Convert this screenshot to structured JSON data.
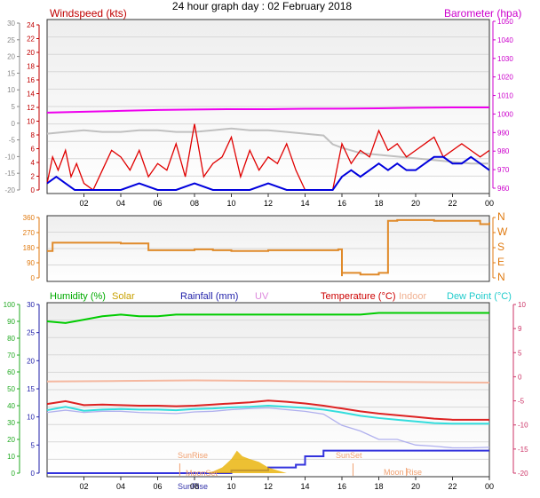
{
  "title": "24 hour graph day : 02 February 2018",
  "x_ticks": [
    "02",
    "04",
    "06",
    "08",
    "10",
    "12",
    "14",
    "16",
    "18",
    "20",
    "22",
    "00"
  ],
  "colors": {
    "wind": "#e00000",
    "gust_avg": "#0000dd",
    "baro": "#ee00ee",
    "baro_old": "#c0c0c0",
    "dir": "#e08a2a",
    "humidity": "#00cc00",
    "solar": "#e8b000",
    "rain": "#3333dd",
    "uv": "#dd88dd",
    "temp": "#dd2222",
    "indoor": "#f5b8a0",
    "dew": "#33dddd",
    "apparent": "#b0b0ee"
  },
  "chart_data": [
    {
      "type": "line",
      "panel": "wind-baro",
      "left_label": "Windspeed (kts)",
      "right_label": "Barometer (hpa)",
      "left_axis_outer": [
        "30",
        "25",
        "20",
        "15",
        "10",
        "5",
        "0",
        "-5",
        "-10",
        "-15",
        "-20"
      ],
      "left_axis_inner": [
        "24",
        "22",
        "20",
        "18",
        "16",
        "14",
        "12",
        "10",
        "8",
        "6",
        "4",
        "2",
        "0"
      ],
      "right_axis": [
        "1050",
        "1040",
        "1030",
        "1020",
        "1010",
        "1000",
        "990",
        "980",
        "970",
        "960"
      ],
      "ylim_wind": [
        0,
        25
      ],
      "ylim_baro": [
        955,
        1050
      ],
      "series": [
        {
          "key": "baro",
          "values_x": [
            0,
            2,
            4,
            6,
            8,
            10,
            12,
            14,
            16,
            18,
            20,
            22,
            24
          ],
          "values_y": [
            998,
            998.5,
            999,
            999.5,
            999.8,
            1000,
            1000,
            1000.2,
            1000.3,
            1000.5,
            1000.8,
            1001,
            1001
          ]
        },
        {
          "key": "baro_old",
          "values_x": [
            0,
            1,
            2,
            3,
            4,
            5,
            6,
            7,
            8,
            9,
            10,
            11,
            12,
            13,
            14,
            15,
            15.5,
            16,
            17,
            18,
            19,
            20,
            21,
            22,
            23,
            24
          ],
          "values_y": [
            986,
            987,
            988,
            987,
            987,
            988,
            988,
            987,
            987,
            988,
            989,
            988,
            988,
            987,
            986,
            985,
            980,
            978,
            975,
            974,
            973,
            972,
            971,
            970,
            969,
            969
          ]
        },
        {
          "key": "wind",
          "values_x": [
            0,
            0.3,
            0.6,
            1,
            1.3,
            1.6,
            2,
            2.5,
            3,
            3.5,
            4,
            4.5,
            5,
            5.5,
            6,
            6.5,
            7,
            7.5,
            8,
            8.5,
            9,
            9.5,
            10,
            10.5,
            11,
            11.5,
            12,
            12.5,
            13,
            13.5,
            14,
            14.5,
            15,
            15.5,
            16,
            16.5,
            17,
            17.5,
            18,
            18.5,
            19,
            19.5,
            20,
            20.5,
            21,
            21.5,
            22,
            22.5,
            23,
            23.5,
            24
          ],
          "values_y": [
            1,
            5,
            3,
            6,
            2,
            4,
            1,
            0,
            3,
            6,
            5,
            3,
            6,
            2,
            4,
            3,
            7,
            2,
            10,
            2,
            4,
            5,
            8,
            2,
            6,
            3,
            5,
            4,
            7,
            3,
            0,
            0,
            0,
            0,
            7,
            4,
            6,
            5,
            9,
            6,
            7,
            5,
            6,
            7,
            8,
            5,
            6,
            7,
            6,
            5,
            6
          ]
        },
        {
          "key": "gust_avg",
          "values_x": [
            0,
            0.5,
            1,
            1.5,
            2,
            3,
            4,
            5,
            6,
            7,
            8,
            9,
            10,
            11,
            12,
            13,
            14,
            15,
            15.5,
            16,
            16.5,
            17,
            17.5,
            18,
            18.5,
            19,
            19.5,
            20,
            20.5,
            21,
            21.5,
            22,
            22.5,
            23,
            23.5,
            24
          ],
          "values_y": [
            1,
            2,
            1,
            0,
            0,
            0,
            0,
            1,
            0,
            0,
            1,
            0,
            0,
            0,
            1,
            0,
            0,
            0,
            0,
            2,
            3,
            2,
            3,
            4,
            3,
            4,
            3,
            3,
            4,
            5,
            5,
            4,
            4,
            5,
            4,
            3
          ]
        }
      ]
    },
    {
      "type": "line",
      "panel": "wind-direction",
      "left_axis": [
        "360",
        "270",
        "180",
        "90",
        "0"
      ],
      "right_axis": [
        "N",
        "W",
        "S",
        "E",
        "N"
      ],
      "ylim": [
        0,
        360
      ],
      "series": [
        {
          "key": "dir",
          "values_x": [
            0,
            0.2,
            0.3,
            2,
            3,
            4,
            5,
            5.5,
            6,
            7,
            8,
            9,
            10,
            10.5,
            11,
            12,
            13,
            14,
            15,
            15.8,
            16,
            16,
            17,
            18,
            18.5,
            19,
            20,
            21,
            22,
            23,
            23.5,
            24
          ],
          "values_y": [
            160,
            160,
            210,
            210,
            210,
            205,
            205,
            165,
            165,
            165,
            170,
            165,
            160,
            160,
            160,
            165,
            165,
            165,
            165,
            170,
            10,
            30,
            20,
            30,
            340,
            345,
            345,
            340,
            340,
            340,
            320,
            330
          ]
        }
      ]
    },
    {
      "type": "line",
      "panel": "temp-humidity",
      "legend": [
        "Humidity (%)",
        "Solar",
        "Rainfall (mm)",
        "UV",
        "Temperature (°C)",
        "Indoor",
        "Dew Point (°C)"
      ],
      "left_axis_humidity": [
        "100",
        "90",
        "80",
        "70",
        "60",
        "50",
        "40",
        "30",
        "20",
        "10",
        "0"
      ],
      "left_axis_rain": [
        "30",
        "25",
        "20",
        "15",
        "10",
        "5",
        "0"
      ],
      "right_axis_temp": [
        "10",
        "9",
        "5",
        "0",
        "-5",
        "-10",
        "-15",
        "-20"
      ],
      "annotations": [
        "SunRise",
        "SunSet",
        "Moon Rise",
        "SunRise",
        "MoonSet"
      ],
      "series": [
        {
          "key": "humidity",
          "values_x": [
            0,
            1,
            2,
            3,
            4,
            5,
            6,
            7,
            8,
            9,
            10,
            11,
            12,
            13,
            14,
            15,
            16,
            17,
            18,
            19,
            20,
            21,
            22,
            23,
            24
          ],
          "values_y": [
            90,
            89,
            91,
            93,
            94,
            93,
            93,
            94,
            94,
            94,
            94,
            94,
            94,
            94,
            94,
            94,
            94,
            94,
            95,
            95,
            95,
            95,
            95,
            95,
            95
          ]
        },
        {
          "key": "indoor",
          "values_x": [
            0,
            4,
            8,
            12,
            16,
            20,
            24
          ],
          "values_y": [
            16.3,
            16.4,
            16.5,
            16.4,
            16.3,
            16.2,
            16.1
          ]
        },
        {
          "key": "temp",
          "values_x": [
            0,
            1,
            2,
            3,
            4,
            5,
            6,
            7,
            8,
            9,
            10,
            11,
            12,
            13,
            14,
            15,
            16,
            17,
            18,
            19,
            20,
            21,
            22,
            23,
            24
          ],
          "values_y": [
            12.3,
            12.8,
            12.1,
            12.2,
            12.1,
            12.0,
            12.0,
            11.9,
            12.0,
            12.2,
            12.4,
            12.6,
            12.9,
            12.7,
            12.4,
            12.0,
            11.5,
            11.0,
            10.6,
            10.3,
            10.0,
            9.7,
            9.5,
            9.5,
            9.5
          ]
        },
        {
          "key": "dew",
          "values_x": [
            0,
            1,
            2,
            3,
            4,
            5,
            6,
            7,
            8,
            9,
            10,
            11,
            12,
            13,
            14,
            15,
            16,
            17,
            18,
            19,
            20,
            21,
            22,
            23,
            24
          ],
          "values_y": [
            11.2,
            11.8,
            11.1,
            11.3,
            11.4,
            11.3,
            11.3,
            11.2,
            11.4,
            11.5,
            11.7,
            11.8,
            12.0,
            11.8,
            11.6,
            11.3,
            10.8,
            10.2,
            9.8,
            9.5,
            9.2,
            8.9,
            8.8,
            8.8,
            8.8
          ]
        },
        {
          "key": "apparent",
          "values_x": [
            0,
            1,
            2,
            3,
            4,
            5,
            6,
            7,
            8,
            9,
            10,
            11,
            12,
            13,
            14,
            15,
            15.5,
            16,
            17,
            18,
            19,
            20,
            21,
            22,
            23,
            24
          ],
          "values_y": [
            10.8,
            11.2,
            10.8,
            11.0,
            11.0,
            10.8,
            10.7,
            10.6,
            10.9,
            11.0,
            11.3,
            11.5,
            11.6,
            11.3,
            11.0,
            10.5,
            9.5,
            8.5,
            7.5,
            6.0,
            6.0,
            5.0,
            4.8,
            4.5,
            4.5,
            4.6
          ]
        },
        {
          "key": "rain",
          "values_x": [
            0,
            2,
            4,
            6,
            8,
            10,
            11,
            12,
            13.5,
            14,
            15,
            24
          ],
          "values_y": [
            0,
            0,
            0,
            0,
            0,
            0.5,
            0.5,
            1,
            1.5,
            3,
            4,
            4
          ]
        },
        {
          "key": "solar",
          "values_x": [
            8.6,
            9,
            9.5,
            10,
            10.3,
            10.6,
            11,
            11.5,
            12,
            12.5,
            13
          ],
          "values_y": [
            0,
            0.3,
            1,
            2.5,
            4,
            3,
            2.5,
            2,
            1,
            0.5,
            0
          ]
        }
      ]
    }
  ]
}
